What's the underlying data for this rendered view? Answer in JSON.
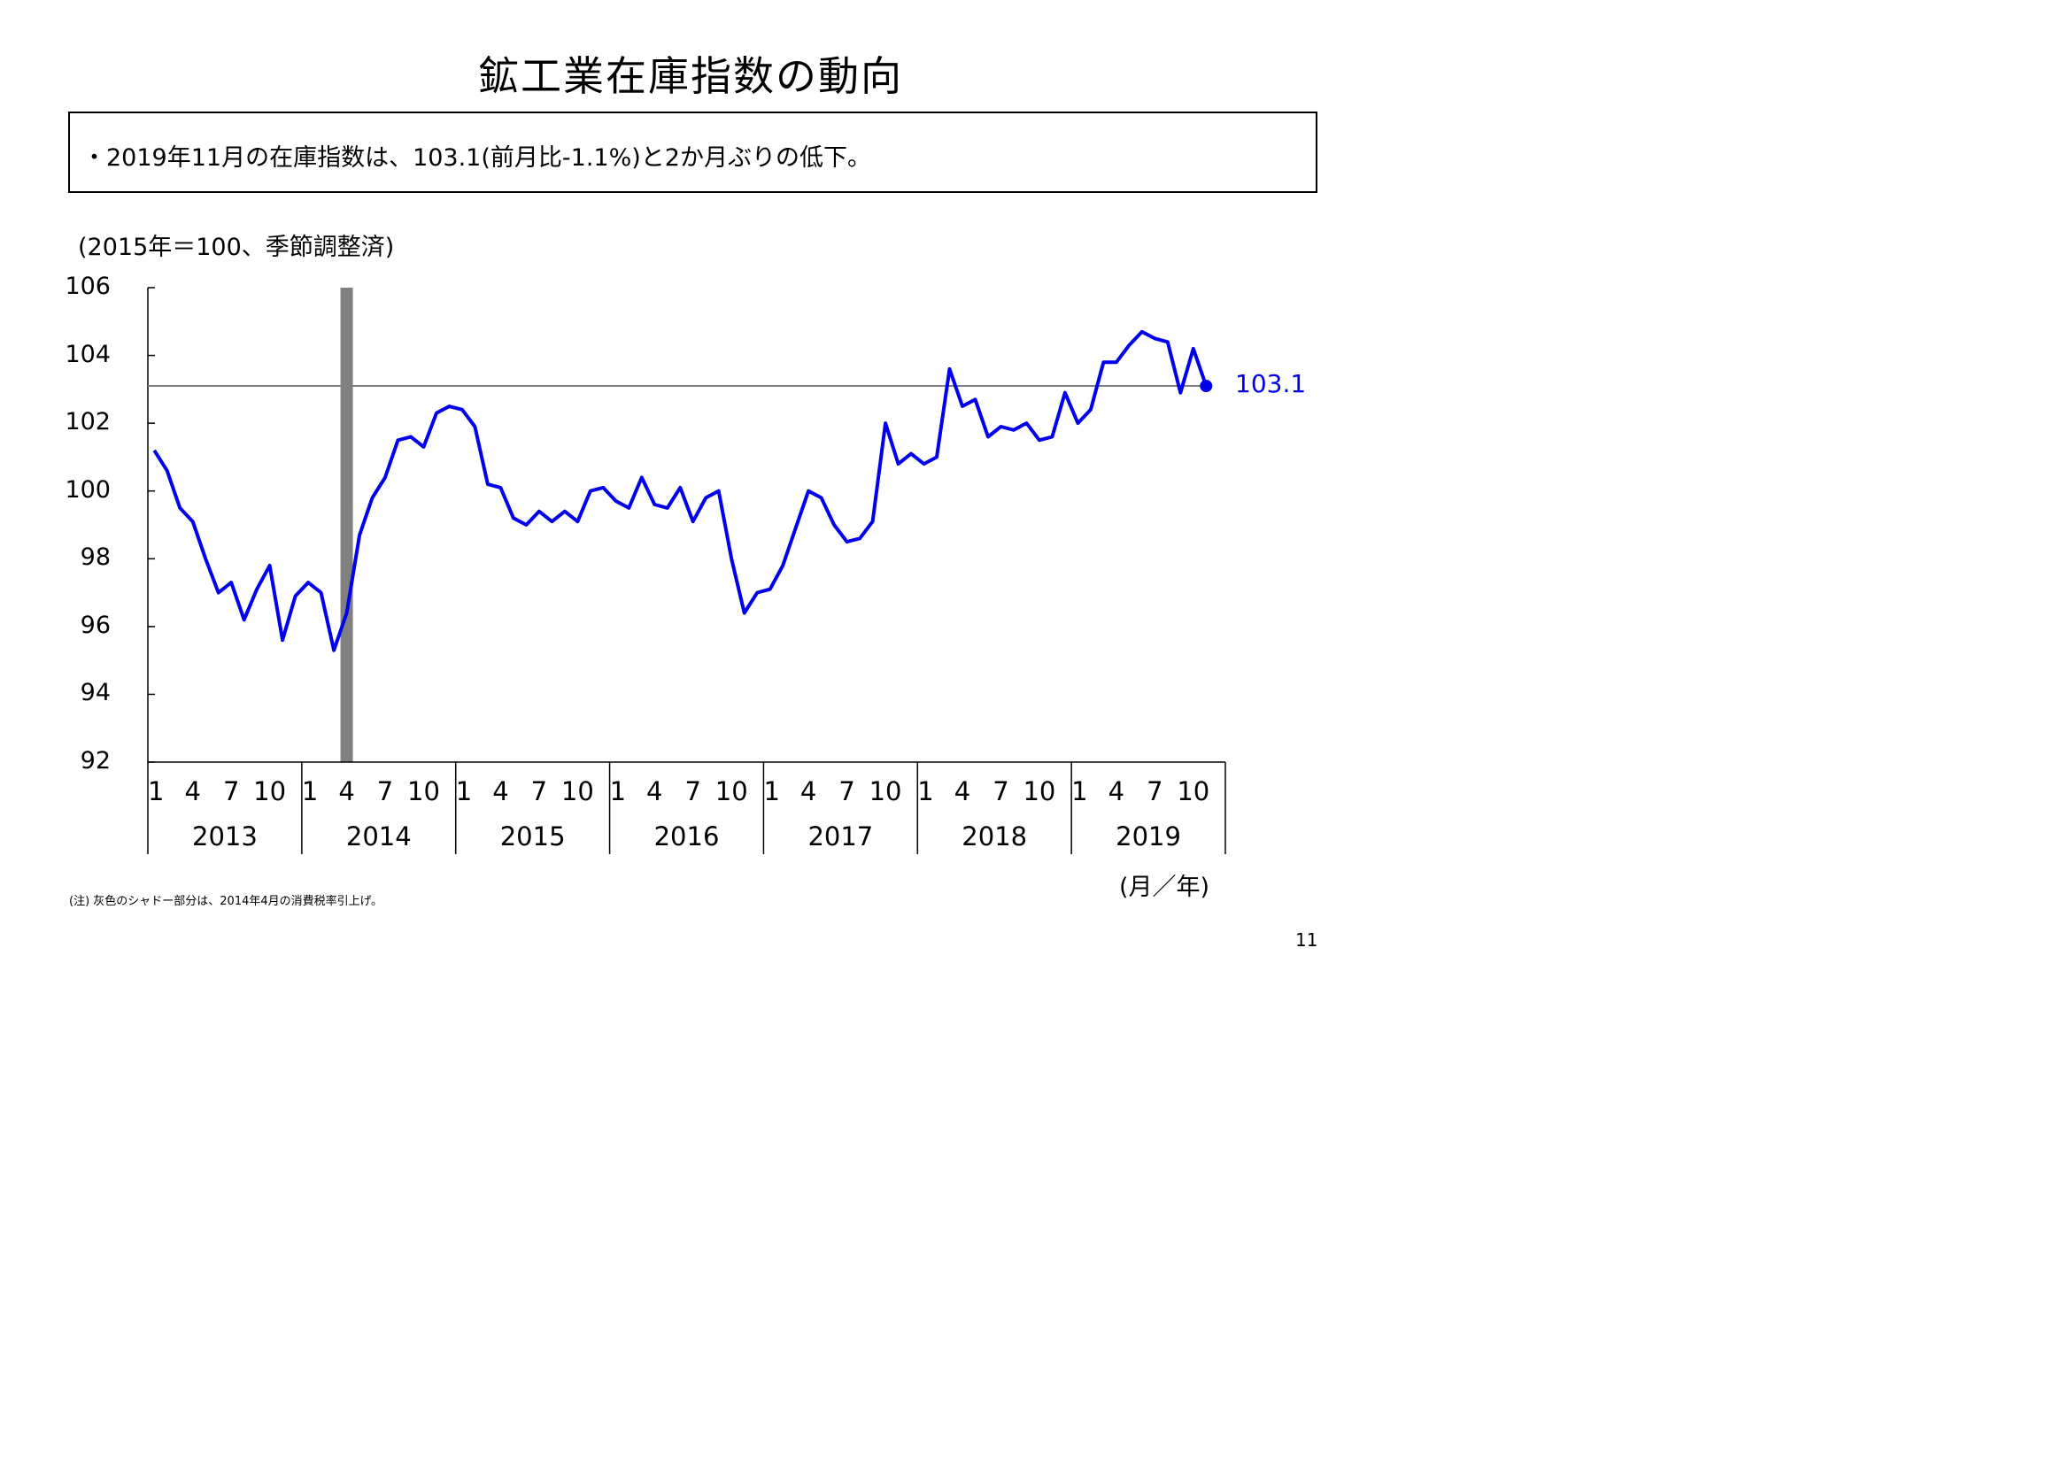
{
  "title": "鉱工業在庫指数の動向",
  "summary": "・2019年11月の在庫指数は、103.1(前月比-1.1%)と2か月ぶりの低下。",
  "unit_note": "(2015年＝100、季節調整済)",
  "axis_unit": "(月／年)",
  "footnote": "(注) 灰色のシャドー部分は、2014年4月の消費税率引上げ。",
  "page_number": "11",
  "colors": {
    "series": "#0000ee",
    "shade": "#808080",
    "reference_line": "#808080",
    "axis": "#000000"
  },
  "chart_data": {
    "type": "line",
    "title": "",
    "xlabel": "(月／年)",
    "ylabel": "(2015年＝100、季節調整済)",
    "ylim": [
      92,
      106
    ],
    "y_ticks": [
      "106",
      "104",
      "102",
      "100",
      "98",
      "96",
      "94",
      "92"
    ],
    "years": [
      "2013",
      "2014",
      "2015",
      "2016",
      "2017",
      "2018",
      "2019"
    ],
    "month_ticks": [
      "1",
      "4",
      "7",
      "10"
    ],
    "x_start": "2013-01",
    "x_end": "2019-11",
    "series": [
      {
        "values": [
          101.2,
          100.6,
          99.5,
          99.1,
          98.0,
          97.0,
          97.3,
          96.2,
          97.1,
          97.8,
          95.6,
          96.9,
          97.3,
          97.0,
          95.3,
          96.4,
          98.7,
          99.8,
          100.4,
          101.5,
          101.6,
          101.3,
          102.3,
          102.5,
          102.4,
          101.9,
          100.2,
          100.1,
          99.2,
          99.0,
          99.4,
          99.1,
          99.4,
          99.1,
          100.0,
          100.1,
          99.7,
          99.5,
          100.4,
          99.6,
          99.5,
          100.1,
          99.1,
          99.8,
          100.0,
          98.0,
          96.4,
          97.0,
          97.1,
          97.8,
          98.9,
          100.0,
          99.8,
          99.0,
          98.5,
          98.6,
          99.1,
          102.0,
          100.8,
          101.1,
          100.8,
          101.0,
          103.6,
          102.5,
          102.7,
          101.6,
          101.9,
          101.8,
          102.0,
          101.5,
          101.6,
          102.9,
          102.0,
          102.4,
          103.8,
          103.8,
          104.3,
          104.7,
          104.5,
          104.4,
          102.9,
          104.2,
          103.1
        ]
      }
    ],
    "shaded_period": "2014-04",
    "reference_line": 103.1,
    "end_label": "103.1",
    "grid": false
  }
}
